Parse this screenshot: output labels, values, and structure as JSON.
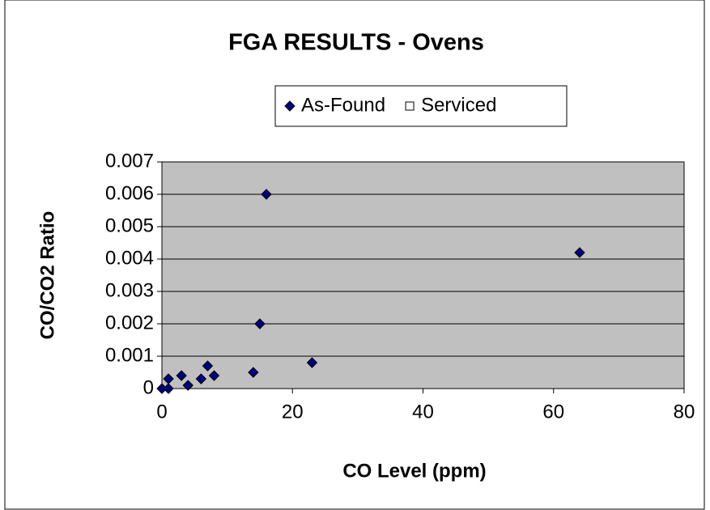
{
  "chart_data": {
    "type": "scatter",
    "title": "FGA RESULTS - Ovens",
    "xlabel": "CO Level (ppm)",
    "ylabel": "CO/CO2 Ratio",
    "series": [
      {
        "name": "As-Found",
        "color": "#000080",
        "marker": "diamond",
        "x": [
          0,
          1,
          1,
          3,
          4,
          6,
          7,
          8,
          14,
          15,
          16,
          23,
          64
        ],
        "values": [
          0,
          0.0003,
          0,
          0.0004,
          0.0001,
          0.0003,
          0.0007,
          0.0004,
          0.0005,
          0.002,
          0.006,
          0.0008,
          0.0042
        ]
      },
      {
        "name": "Serviced",
        "color": "#ffffff",
        "marker": "square",
        "x": [],
        "values": []
      }
    ],
    "xlim": [
      0,
      80
    ],
    "xticks": [
      0,
      20,
      40,
      60,
      80
    ],
    "ylim": [
      0,
      0.007
    ],
    "yticks": [
      0,
      0.001,
      0.002,
      0.003,
      0.004,
      0.005,
      0.006,
      0.007
    ],
    "grid": true,
    "plot_background": "#c0c0c0",
    "legend": "top"
  }
}
